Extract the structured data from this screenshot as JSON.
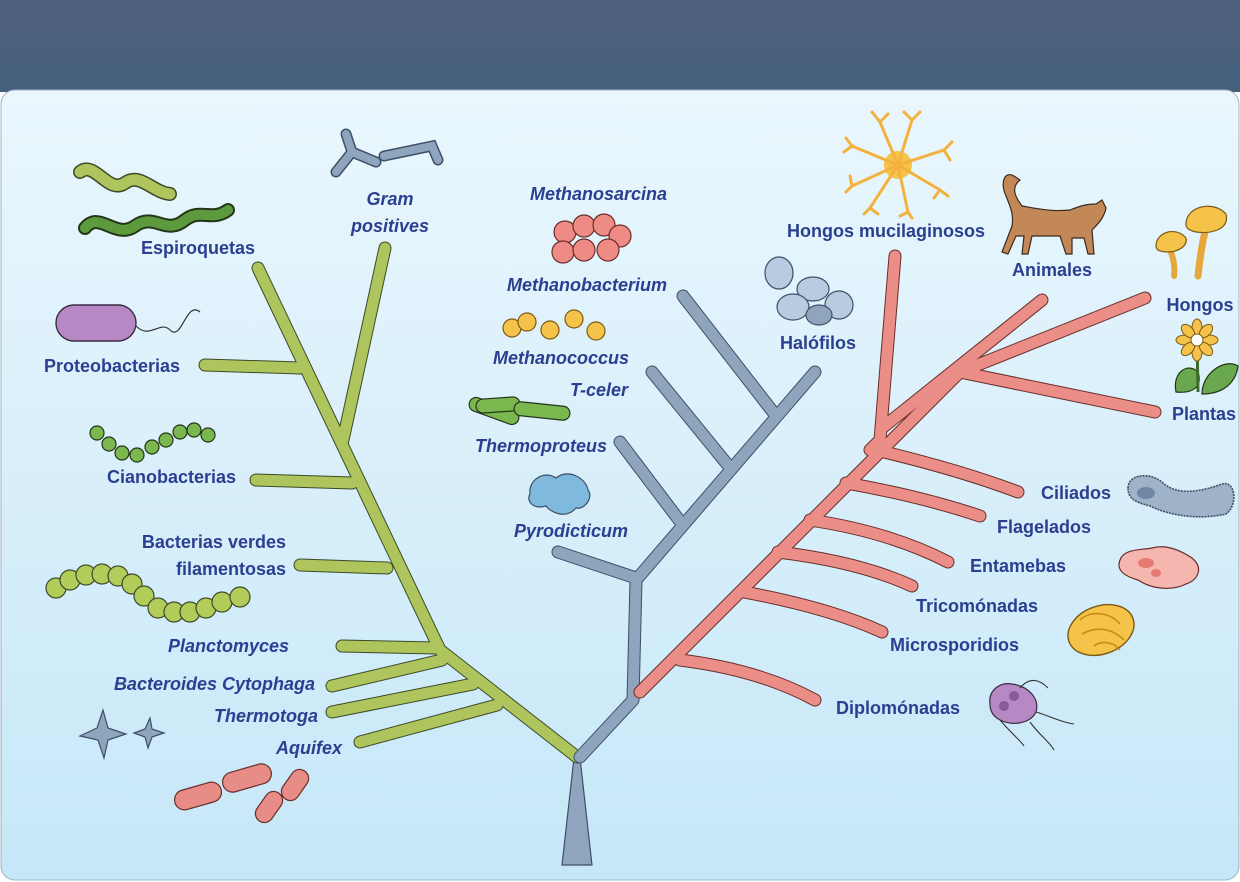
{
  "diagram": {
    "colors": {
      "bacteria": "#a9c25b",
      "archaea": "#8fa5bd",
      "eukarya": "#e88c87",
      "label": "#2b3f91",
      "header": "#4b607d",
      "background_top": "#e9f6fc",
      "background_bottom": "#c8e8f8"
    },
    "labels": {
      "espiroquetas": "Espiroquetas",
      "gram_line1": "Gram",
      "gram_line2": "positives",
      "proteobacterias": "Proteobacterias",
      "cianobacterias": "Cianobacterias",
      "bacterias_verdes_line1": "Bacterias verdes",
      "bacterias_verdes_line2": "filamentosas",
      "planctomyces": "Planctomyces",
      "bacteroides": "Bacteroides Cytophaga",
      "thermotoga": "Thermotoga",
      "aquifex": "Aquifex",
      "methanosarcina": "Methanosarcina",
      "methanobacterium": "Methanobacterium",
      "methanococcus": "Methanococcus",
      "t_celer": "T-celer",
      "thermoproteus": "Thermoproteus",
      "pyrodicticum": "Pyrodicticum",
      "halofilos": "Halófilos",
      "hongos_mucilaginosos": "Hongos mucilaginosos",
      "animales": "Animales",
      "hongos": "Hongos",
      "plantas": "Plantas",
      "ciliados": "Ciliados",
      "flagelados": "Flagelados",
      "entamebas": "Entamebas",
      "tricomonadas": "Tricomónadas",
      "microsporidios": "Microsporidios",
      "diplomonadas": "Diplomónadas"
    },
    "icons": [
      "spirochete-icon",
      "gram-positive-icon",
      "proteobacteria-icon",
      "cyanobacteria-icon",
      "green-filamentous-icon",
      "star-bacteria-icon",
      "rod-bacteria-icon",
      "methanosarcina-icon",
      "methanococcus-icon",
      "thermoproteus-icon",
      "pyrodicticum-icon",
      "halophile-icon",
      "slime-mold-icon",
      "cat-icon",
      "mushroom-icon",
      "flower-icon",
      "ciliate-icon",
      "amoeba-icon",
      "microsporidia-icon",
      "diplomonad-icon"
    ]
  }
}
